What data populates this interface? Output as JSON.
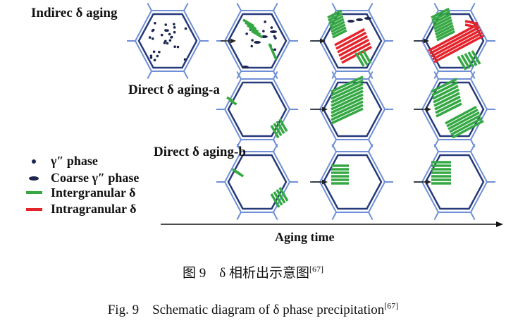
{
  "rows": [
    {
      "label": "Indirec δ aging"
    },
    {
      "label": "Direct δ aging-a"
    },
    {
      "label": "Direct δ aging-b"
    }
  ],
  "legend": [
    {
      "label": "γ″ phase",
      "symbol": "dot",
      "color": "#1b2550"
    },
    {
      "label": "Coarse γ″ phase",
      "symbol": "ellipse",
      "color": "#1b2550"
    },
    {
      "label": "Intergranular δ",
      "symbol": "line",
      "color": "#35a844"
    },
    {
      "label": "Intragranular δ",
      "symbol": "line",
      "color": "#e5232b"
    }
  ],
  "axis": {
    "label": "Aging time"
  },
  "caption": {
    "cn": "图 9　δ 相析出示意图",
    "cn_ref": "[67]",
    "en": "Fig. 9　Schematic diagram of δ phase precipitation",
    "en_ref": "[67]"
  },
  "colors": {
    "boundary_outer": "#6f8fd6",
    "boundary_inner": "#263a7a",
    "green": "#35a844",
    "red": "#e5232b"
  }
}
